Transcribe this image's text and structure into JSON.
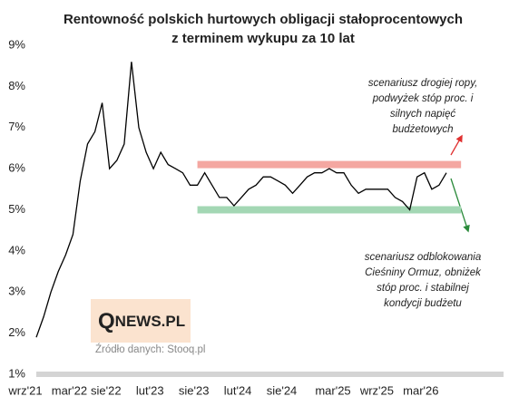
{
  "chart_data": {
    "type": "line",
    "title": "Rentowność polskich hurtowych obligacji stałoprocentowych",
    "subtitle": "z terminem wykupu za 10 lat",
    "x": [
      "2021-09",
      "2021-10",
      "2021-11",
      "2021-12",
      "2022-01",
      "2022-02",
      "2022-03",
      "2022-04",
      "2022-05",
      "2022-06",
      "2022-07",
      "2022-08",
      "2022-09",
      "2022-10",
      "2022-11",
      "2022-12",
      "2023-01",
      "2023-02",
      "2023-03",
      "2023-04",
      "2023-05",
      "2023-06",
      "2023-07",
      "2023-08",
      "2023-09",
      "2023-10",
      "2023-11",
      "2023-12",
      "2024-01",
      "2024-02",
      "2024-03",
      "2024-04",
      "2024-05",
      "2024-06",
      "2024-07",
      "2024-08",
      "2024-09",
      "2024-10",
      "2024-11",
      "2024-12",
      "2025-01",
      "2025-02",
      "2025-03",
      "2025-04",
      "2025-05",
      "2025-06",
      "2025-07",
      "2025-08",
      "2025-09",
      "2025-10",
      "2025-11",
      "2025-12",
      "2026-01",
      "2026-02",
      "2026-03",
      "2026-04",
      "2026-05"
    ],
    "series": [
      {
        "color": "#000000",
        "values": [
          1.9,
          2.4,
          3.0,
          3.5,
          3.9,
          4.4,
          5.7,
          6.6,
          6.9,
          7.6,
          6.0,
          6.2,
          6.6,
          8.6,
          7.0,
          6.4,
          6.0,
          6.4,
          6.1,
          6.0,
          5.9,
          5.6,
          5.6,
          5.9,
          5.6,
          5.3,
          5.3,
          5.1,
          5.3,
          5.5,
          5.6,
          5.8,
          5.8,
          5.7,
          5.6,
          5.4,
          5.6,
          5.8,
          5.9,
          5.9,
          6.0,
          5.9,
          5.9,
          5.6,
          5.4,
          5.5,
          5.5,
          5.5,
          5.5,
          5.3,
          5.2,
          5.0,
          5.8,
          5.9,
          5.5,
          5.6,
          5.9
        ]
      }
    ],
    "xlim": [
      "2021-09",
      "2026-05"
    ],
    "xticks": [
      {
        "value": "2021-09",
        "label": "wrz'21"
      },
      {
        "value": "2022-03",
        "label": "mar'22"
      },
      {
        "value": "2022-08",
        "label": "sie'22"
      },
      {
        "value": "2023-02",
        "label": "lut'23"
      },
      {
        "value": "2023-08",
        "label": "sie'23"
      },
      {
        "value": "2024-02",
        "label": "lut'24"
      },
      {
        "value": "2024-08",
        "label": "sie'24"
      },
      {
        "value": "2025-03",
        "label": "mar'25"
      },
      {
        "value": "2025-09",
        "label": "wrz'25"
      },
      {
        "value": "2026-03",
        "label": "mar'26"
      }
    ],
    "ylim": [
      1,
      9
    ],
    "yticks": [
      {
        "value": 1,
        "label": "1%"
      },
      {
        "value": 2,
        "label": "2%"
      },
      {
        "value": 3,
        "label": "3%"
      },
      {
        "value": 4,
        "label": "4%"
      },
      {
        "value": 5,
        "label": "5%"
      },
      {
        "value": 6,
        "label": "6%"
      },
      {
        "value": 7,
        "label": "7%"
      },
      {
        "value": 8,
        "label": "8%"
      },
      {
        "value": 9,
        "label": "9%"
      }
    ],
    "bands": [
      {
        "value": 6.1,
        "from": "2023-07",
        "to": "2026-07",
        "color": "#f4a7a1"
      },
      {
        "value": 5.0,
        "from": "2023-07",
        "to": "2026-07",
        "color": "#a3d7b4"
      }
    ],
    "annotations": [
      {
        "lines": [
          "scenariusz drogiej ropy,",
          "podwyżek stóp proc. i",
          "silnych napięć",
          "budżetowych"
        ]
      },
      {
        "lines": [
          "scenariusz odblokowania",
          "Cieśniny Ormuz, obniżek",
          "stóp proc. i stabilnej",
          "kondycji budżetu"
        ]
      }
    ],
    "logo": {
      "initial": "Q",
      "rest": "NEWS.PL"
    },
    "source": "Źródło danych: Stooq.pl"
  }
}
